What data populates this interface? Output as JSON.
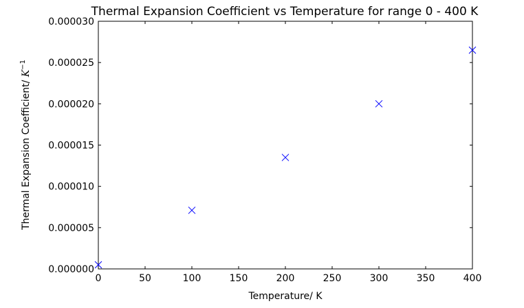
{
  "chart_data": {
    "type": "scatter",
    "title": "Thermal Expansion Coefficient vs Temperature for range 0 - 400 K",
    "xlabel": "Temperature/ K",
    "ylabel_text": "Thermal Expansion Coefficient/ ",
    "ylabel_unit_base": "K",
    "ylabel_unit_exp": "−1",
    "xlim": [
      0,
      400
    ],
    "ylim": [
      0,
      3e-05
    ],
    "xticks": [
      0,
      50,
      100,
      150,
      200,
      250,
      300,
      350,
      400
    ],
    "xtick_labels": [
      "0",
      "50",
      "100",
      "150",
      "200",
      "250",
      "300",
      "350",
      "400"
    ],
    "yticks": [
      0,
      5e-06,
      1e-05,
      1.5e-05,
      2e-05,
      2.5e-05,
      3e-05
    ],
    "ytick_labels": [
      "0.000000",
      "0.000005",
      "0.000010",
      "0.000015",
      "0.000020",
      "0.000025",
      "0.000030"
    ],
    "grid": false,
    "marker": "x",
    "marker_color": "#0000ff",
    "series": [
      {
        "x": [
          0,
          100,
          200,
          300,
          400
        ],
        "y": [
          5e-07,
          7.1e-06,
          1.35e-05,
          2e-05,
          2.65e-05
        ]
      }
    ]
  }
}
